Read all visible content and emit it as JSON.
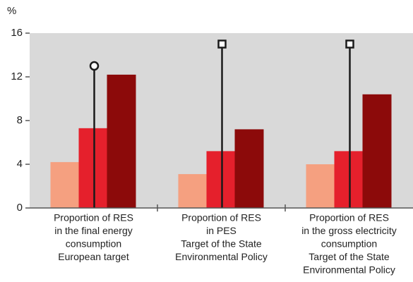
{
  "chart_data": {
    "type": "bar",
    "y_label": "%",
    "categories": [
      [
        "Proportion of RES",
        "in the final energy",
        "consumption",
        "European target"
      ],
      [
        "Proportion of RES",
        "in PES",
        "Target of the State",
        "Environmental Policy"
      ],
      [
        "Proportion of RES",
        "in the gross electricity",
        "consumption",
        "Target of the State",
        "Environmental Policy"
      ]
    ],
    "series": [
      {
        "color": "#f5a080",
        "values": [
          4.2,
          3.1,
          4.0
        ]
      },
      {
        "color": "#e5202c",
        "values": [
          7.3,
          5.2,
          5.2
        ]
      },
      {
        "color": "#8c0a0a",
        "values": [
          12.2,
          7.2,
          10.4
        ]
      }
    ],
    "targets": {
      "color": "#1a1a1a",
      "values": [
        13,
        15,
        15
      ],
      "markers": [
        "circle",
        "square",
        "square"
      ]
    },
    "ylim": [
      0,
      16
    ],
    "yticks": [
      0,
      4,
      8,
      12,
      16
    ],
    "background": "#d9d9d9",
    "grid": false
  }
}
